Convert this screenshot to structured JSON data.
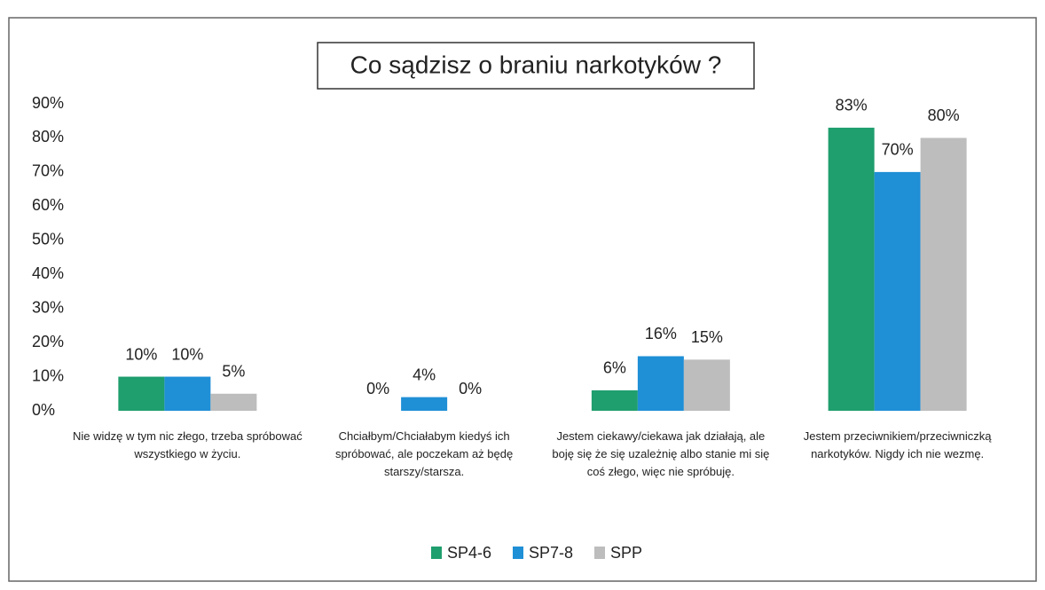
{
  "chart_data": {
    "type": "bar",
    "title": "Co sądzisz o braniu narkotyków ?",
    "categories": [
      "Nie widzę w tym nic złego, trzeba spróbować wszystkiego w życiu.",
      "Chciałbym/Chciałabym kiedyś ich spróbować, ale poczekam aż będę starszy/starsza.",
      "Jestem ciekawy/ciekawa jak działają, ale boję się że się uzależnię albo stanie mi się coś złego, więc nie spróbuję.",
      "Jestem przeciwnikiem/przeciwniczką narkotyków. Nigdy ich nie wezmę."
    ],
    "series": [
      {
        "name": "SP4-6",
        "color": "#1f9e6e",
        "values": [
          10,
          0,
          6,
          83
        ],
        "value_labels": [
          "10%",
          "0%",
          "6%",
          "83%"
        ]
      },
      {
        "name": "SP7-8",
        "color": "#1f8fd6",
        "values": [
          10,
          4,
          16,
          70
        ],
        "value_labels": [
          "10%",
          "4%",
          "16%",
          "70%"
        ]
      },
      {
        "name": "SPP",
        "color": "#bdbdbd",
        "values": [
          5,
          0,
          15,
          80
        ],
        "value_labels": [
          "5%",
          "0%",
          "15%",
          "80%"
        ]
      }
    ],
    "ylim": [
      0,
      90
    ],
    "yticks": [
      {
        "value": 0,
        "label": "0%"
      },
      {
        "value": 10,
        "label": "10%"
      },
      {
        "value": 20,
        "label": "20%"
      },
      {
        "value": 30,
        "label": "30%"
      },
      {
        "value": 40,
        "label": "40%"
      },
      {
        "value": 50,
        "label": "50%"
      },
      {
        "value": 60,
        "label": "60%"
      },
      {
        "value": 70,
        "label": "70%"
      },
      {
        "value": 80,
        "label": "80%"
      },
      {
        "value": 90,
        "label": "90%"
      }
    ],
    "grid": false,
    "legend": "bottom"
  }
}
